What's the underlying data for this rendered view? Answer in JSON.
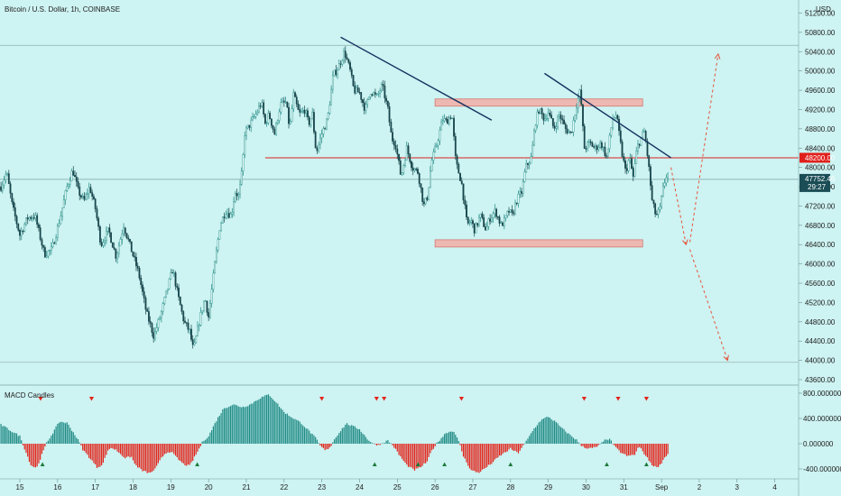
{
  "header": {
    "title": "Bitcoin / U.S. Dollar, 1h, COINBASE"
  },
  "currency": "USD",
  "price_axis": {
    "ticks": [
      "51200.00",
      "50800.00",
      "50400.00",
      "50000.00",
      "49600.00",
      "49200.00",
      "48800.00",
      "48400.00",
      "48000.00",
      "47600.00",
      "47200.00",
      "46800.00",
      "46400.00",
      "46000.00",
      "45600.00",
      "45200.00",
      "44800.00",
      "44400.00",
      "44000.00",
      "43600.00"
    ]
  },
  "macd_axis": {
    "ticks": [
      "800.000000",
      "400.000000",
      "0.000000",
      "-400.000000"
    ]
  },
  "time_axis": {
    "ticks": [
      "15",
      "16",
      "17",
      "18",
      "19",
      "20",
      "21",
      "22",
      "23",
      "24",
      "25",
      "26",
      "27",
      "28",
      "29",
      "30",
      "31",
      "Sep",
      "2",
      "3",
      "4"
    ]
  },
  "price_badge": {
    "level": "48200.00",
    "last": "47752.46",
    "countdown": "29:27"
  },
  "indicator": {
    "name": "MACD Candles"
  },
  "colors": {
    "bull": "#1f8a84",
    "bear": "#e3241b",
    "background": "#cdf3f2",
    "resistance": "#e0201c",
    "zone": "#f2b2ac",
    "trendline": "#14305e"
  },
  "chart_data": {
    "type": "candlestick",
    "title": "Bitcoin / U.S. Dollar, 1h, COINBASE",
    "xlabel": "",
    "ylabel": "",
    "ylim": [
      43500,
      51300
    ],
    "grid": false,
    "horizontal_levels": [
      48200,
      47752.46,
      50530,
      43960
    ],
    "zones": [
      {
        "x": [
          26,
          31.5
        ],
        "y": [
          49300,
          49420
        ]
      },
      {
        "x": [
          26,
          31.5
        ],
        "y": [
          46380,
          46500
        ]
      }
    ],
    "trendlines": [
      {
        "x": [
          23.5,
          27.5
        ],
        "y": [
          50700,
          48980
        ]
      },
      {
        "x": [
          28.9,
          32.25
        ],
        "y": [
          49950,
          48200
        ]
      }
    ],
    "projections": [
      {
        "x": [
          32.25,
          32.65
        ],
        "y": [
          48000,
          46400
        ]
      },
      {
        "x": [
          32.75,
          33.5
        ],
        "y": [
          46450,
          50350
        ]
      },
      {
        "x": [
          32.75,
          33.75
        ],
        "y": [
          46300,
          44000
        ]
      }
    ],
    "close_path": [
      [
        14.5,
        47600
      ],
      [
        14.65,
        47900
      ],
      [
        14.8,
        47200
      ],
      [
        15.0,
        46600
      ],
      [
        15.2,
        46950
      ],
      [
        15.4,
        47000
      ],
      [
        15.65,
        46200
      ],
      [
        15.85,
        46300
      ],
      [
        16.05,
        46900
      ],
      [
        16.25,
        47600
      ],
      [
        16.4,
        47950
      ],
      [
        16.55,
        47500
      ],
      [
        16.7,
        47300
      ],
      [
        16.85,
        47600
      ],
      [
        17.0,
        47150
      ],
      [
        17.15,
        46400
      ],
      [
        17.35,
        46700
      ],
      [
        17.55,
        46150
      ],
      [
        17.75,
        46800
      ],
      [
        17.95,
        46300
      ],
      [
        18.15,
        45800
      ],
      [
        18.35,
        45000
      ],
      [
        18.55,
        44500
      ],
      [
        18.75,
        45000
      ],
      [
        18.95,
        45600
      ],
      [
        19.05,
        45900
      ],
      [
        19.2,
        45300
      ],
      [
        19.35,
        44800
      ],
      [
        19.5,
        44600
      ],
      [
        19.6,
        44200
      ],
      [
        19.75,
        44800
      ],
      [
        19.9,
        45300
      ],
      [
        20.0,
        44900
      ],
      [
        20.15,
        45900
      ],
      [
        20.3,
        46800
      ],
      [
        20.45,
        47100
      ],
      [
        20.6,
        47000
      ],
      [
        20.7,
        47500
      ],
      [
        20.8,
        47400
      ],
      [
        20.9,
        48000
      ],
      [
        20.95,
        48700
      ],
      [
        21.1,
        48900
      ],
      [
        21.25,
        49100
      ],
      [
        21.4,
        49350
      ],
      [
        21.5,
        48900
      ],
      [
        21.6,
        49100
      ],
      [
        21.75,
        48700
      ],
      [
        21.9,
        49300
      ],
      [
        22.05,
        49350
      ],
      [
        22.15,
        48800
      ],
      [
        22.25,
        49500
      ],
      [
        22.4,
        49100
      ],
      [
        22.55,
        49200
      ],
      [
        22.65,
        48900
      ],
      [
        22.75,
        49100
      ],
      [
        22.85,
        48300
      ],
      [
        23.0,
        48700
      ],
      [
        23.15,
        49000
      ],
      [
        23.3,
        49900
      ],
      [
        23.45,
        50100
      ],
      [
        23.6,
        50400
      ],
      [
        23.75,
        50000
      ],
      [
        23.85,
        49600
      ],
      [
        24.0,
        49550
      ],
      [
        24.15,
        49200
      ],
      [
        24.3,
        49600
      ],
      [
        24.45,
        49450
      ],
      [
        24.6,
        49700
      ],
      [
        24.75,
        49200
      ],
      [
        24.85,
        48600
      ],
      [
        24.95,
        48500
      ],
      [
        25.1,
        47800
      ],
      [
        25.25,
        48400
      ],
      [
        25.4,
        48000
      ],
      [
        25.55,
        47900
      ],
      [
        25.7,
        47200
      ],
      [
        25.8,
        47400
      ],
      [
        25.9,
        48100
      ],
      [
        26.05,
        48500
      ],
      [
        26.2,
        49000
      ],
      [
        26.3,
        48950
      ],
      [
        26.45,
        49100
      ],
      [
        26.55,
        48100
      ],
      [
        26.7,
        47700
      ],
      [
        26.85,
        46800
      ],
      [
        26.95,
        46900
      ],
      [
        27.05,
        46700
      ],
      [
        27.2,
        47000
      ],
      [
        27.35,
        46700
      ],
      [
        27.45,
        46950
      ],
      [
        27.6,
        47100
      ],
      [
        27.75,
        46800
      ],
      [
        27.85,
        46900
      ],
      [
        27.95,
        47100
      ],
      [
        28.05,
        47000
      ],
      [
        28.15,
        47300
      ],
      [
        28.3,
        47500
      ],
      [
        28.4,
        48000
      ],
      [
        28.55,
        48200
      ],
      [
        28.65,
        48900
      ],
      [
        28.75,
        49200
      ],
      [
        28.9,
        49000
      ],
      [
        29.0,
        49150
      ],
      [
        29.15,
        48800
      ],
      [
        29.3,
        49100
      ],
      [
        29.45,
        48800
      ],
      [
        29.6,
        48700
      ],
      [
        29.75,
        49300
      ],
      [
        29.85,
        49600
      ],
      [
        29.95,
        48400
      ],
      [
        30.1,
        48500
      ],
      [
        30.25,
        48400
      ],
      [
        30.4,
        48500
      ],
      [
        30.55,
        48200
      ],
      [
        30.7,
        49000
      ],
      [
        30.8,
        49100
      ],
      [
        30.95,
        48300
      ],
      [
        31.05,
        47900
      ],
      [
        31.15,
        48200
      ],
      [
        31.25,
        47800
      ],
      [
        31.35,
        48400
      ],
      [
        31.45,
        48600
      ],
      [
        31.55,
        48750
      ],
      [
        31.65,
        48100
      ],
      [
        31.75,
        47300
      ],
      [
        31.85,
        47000
      ],
      [
        31.95,
        47100
      ],
      [
        32.05,
        47600
      ],
      [
        32.15,
        47900
      ],
      [
        32.2,
        47752
      ]
    ],
    "macd_histogram": {
      "ylim": [
        -560,
        820
      ],
      "points": [
        [
          14.5,
          300
        ],
        [
          15.0,
          120
        ],
        [
          15.1,
          -40
        ],
        [
          15.3,
          -350
        ],
        [
          15.45,
          -380
        ],
        [
          15.6,
          -150
        ],
        [
          15.7,
          0
        ],
        [
          15.85,
          150
        ],
        [
          16.05,
          350
        ],
        [
          16.25,
          330
        ],
        [
          16.45,
          150
        ],
        [
          16.6,
          0
        ],
        [
          16.65,
          -80
        ],
        [
          16.9,
          -260
        ],
        [
          17.05,
          -380
        ],
        [
          17.2,
          -320
        ],
        [
          17.3,
          -150
        ],
        [
          17.4,
          -60
        ],
        [
          17.55,
          -100
        ],
        [
          17.8,
          -230
        ],
        [
          17.95,
          -200
        ],
        [
          18.05,
          -330
        ],
        [
          18.25,
          -430
        ],
        [
          18.45,
          -470
        ],
        [
          18.6,
          -390
        ],
        [
          18.75,
          -230
        ],
        [
          18.85,
          -150
        ],
        [
          19.0,
          -120
        ],
        [
          19.2,
          -250
        ],
        [
          19.35,
          -330
        ],
        [
          19.5,
          -350
        ],
        [
          19.65,
          -190
        ],
        [
          19.75,
          -80
        ],
        [
          19.85,
          40
        ],
        [
          20.0,
          120
        ],
        [
          20.2,
          360
        ],
        [
          20.4,
          560
        ],
        [
          20.65,
          620
        ],
        [
          20.9,
          580
        ],
        [
          21.1,
          620
        ],
        [
          21.35,
          720
        ],
        [
          21.6,
          780
        ],
        [
          21.8,
          650
        ],
        [
          22.0,
          500
        ],
        [
          22.2,
          420
        ],
        [
          22.45,
          330
        ],
        [
          22.65,
          210
        ],
        [
          22.85,
          80
        ],
        [
          22.95,
          -30
        ],
        [
          23.1,
          -110
        ],
        [
          23.25,
          -30
        ],
        [
          23.3,
          40
        ],
        [
          23.45,
          170
        ],
        [
          23.65,
          320
        ],
        [
          23.8,
          280
        ],
        [
          24.0,
          230
        ],
        [
          24.2,
          80
        ],
        [
          24.35,
          0
        ],
        [
          24.5,
          -20
        ],
        [
          24.75,
          50
        ],
        [
          24.9,
          -40
        ],
        [
          25.05,
          -180
        ],
        [
          25.25,
          -340
        ],
        [
          25.45,
          -420
        ],
        [
          25.6,
          -380
        ],
        [
          25.8,
          -280
        ],
        [
          25.9,
          -120
        ],
        [
          26.05,
          10
        ],
        [
          26.3,
          180
        ],
        [
          26.5,
          200
        ],
        [
          26.65,
          0
        ],
        [
          26.75,
          -200
        ],
        [
          26.95,
          -420
        ],
        [
          27.15,
          -460
        ],
        [
          27.3,
          -400
        ],
        [
          27.5,
          -310
        ],
        [
          27.7,
          -200
        ],
        [
          27.9,
          -120
        ],
        [
          28.0,
          -80
        ],
        [
          28.2,
          -150
        ],
        [
          28.3,
          -60
        ],
        [
          28.4,
          20
        ],
        [
          28.6,
          220
        ],
        [
          28.8,
          370
        ],
        [
          29.0,
          430
        ],
        [
          29.2,
          340
        ],
        [
          29.35,
          250
        ],
        [
          29.55,
          150
        ],
        [
          29.75,
          60
        ],
        [
          29.85,
          -20
        ],
        [
          30.05,
          -80
        ],
        [
          30.25,
          -60
        ],
        [
          30.4,
          0
        ],
        [
          30.55,
          80
        ],
        [
          30.65,
          60
        ],
        [
          30.75,
          -40
        ],
        [
          30.9,
          -130
        ],
        [
          31.1,
          -200
        ],
        [
          31.3,
          -170
        ],
        [
          31.4,
          -40
        ],
        [
          31.5,
          -120
        ],
        [
          31.65,
          -250
        ],
        [
          31.8,
          -370
        ],
        [
          31.95,
          -350
        ],
        [
          32.1,
          -200
        ],
        [
          32.2,
          -150
        ]
      ]
    },
    "bear_markers_x": [
      15.55,
      16.9,
      23.0,
      24.45,
      24.65,
      26.7,
      29.95,
      30.85,
      31.6
    ],
    "bull_markers_x": [
      15.6,
      19.7,
      24.4,
      25.55,
      26.25,
      28.0,
      30.55,
      31.6
    ]
  }
}
